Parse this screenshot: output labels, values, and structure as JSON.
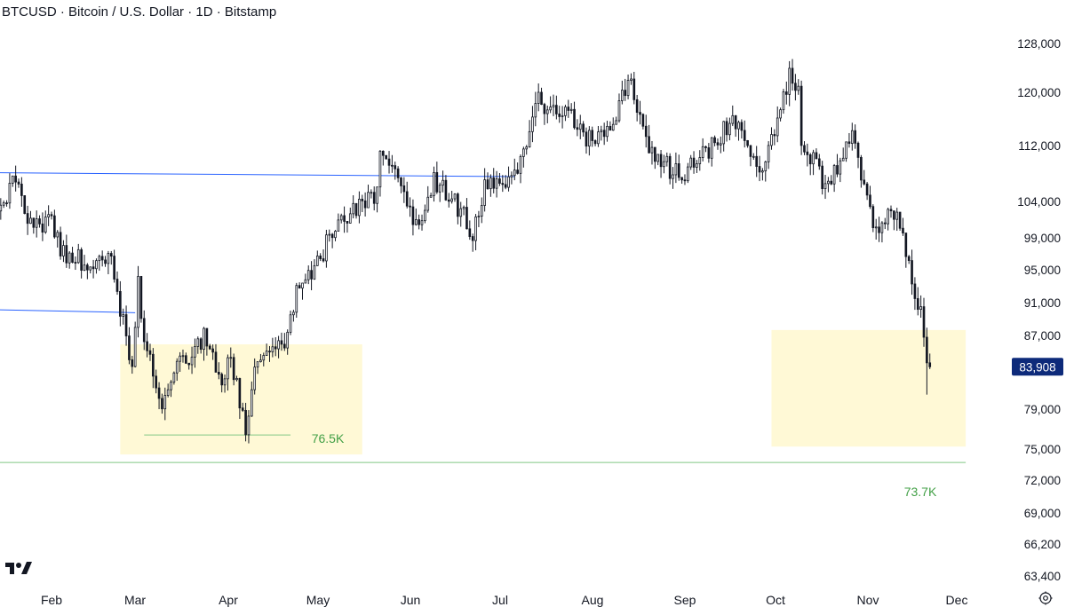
{
  "header": {
    "title": "BTCUSD · Bitcoin / U.S. Dollar · 1D · Bitstamp"
  },
  "colors": {
    "candle": "#131722",
    "zone_fill": "#fff9d6",
    "level_line": "#81c784",
    "level_text": "#43a047",
    "trendline": "#2962ff",
    "price_tag_bg": "#0d2a7a",
    "axis_text": "#131722"
  },
  "icons": {
    "logo": "tradingview-logo-icon",
    "settings": "settings-gear-icon"
  },
  "chart_data": {
    "type": "candlestick",
    "title": "BTCUSD · Bitcoin / U.S. Dollar · 1D · Bitstamp",
    "xlabel": "",
    "ylabel": "",
    "x_tick_labels": [
      "Feb",
      "Mar",
      "Apr",
      "May",
      "Jun",
      "Jul",
      "Aug",
      "Sep",
      "Oct",
      "Nov",
      "Dec"
    ],
    "y_tick_labels": [
      "63,400",
      "66,200",
      "69,000",
      "72,000",
      "75,000",
      "79,000",
      "87,000",
      "91,000",
      "95,000",
      "99,000",
      "104,000",
      "112,000",
      "120,000",
      "128,000"
    ],
    "y_scale": "log",
    "ylim": [
      62500,
      138000
    ],
    "last_price": {
      "label": "83,908",
      "value": 83908
    },
    "levels": [
      {
        "label": "76.5K",
        "value": 76500,
        "from": "2025-03-04",
        "to": "2025-04-22"
      },
      {
        "label": "73.7K",
        "value": 73700,
        "from": "2025-01-09",
        "to": "2025-12-04"
      }
    ],
    "support_zones": [
      {
        "from": "2025-02-24",
        "to": "2025-05-16",
        "low": 74500,
        "high": 86500
      },
      {
        "from": "2025-09-30",
        "to": "2025-12-04",
        "low": 75300,
        "high": 88200
      }
    ],
    "trendlines": [
      {
        "from_date": "2025-01-09",
        "from_value": 109200,
        "to_date": "2025-07-06",
        "to_value": 108600
      },
      {
        "from_date": "2025-01-09",
        "from_value": 90700,
        "to_date": "2025-03-01",
        "to_value": 90300
      }
    ],
    "path_points": [
      [
        "2025-01-10",
        96000
      ],
      [
        "2025-01-14",
        103000
      ],
      [
        "2025-01-20",
        108500
      ],
      [
        "2025-01-23",
        103500
      ],
      [
        "2025-01-27",
        101500
      ],
      [
        "2025-02-01",
        102000
      ],
      [
        "2025-02-04",
        98000
      ],
      [
        "2025-02-10",
        97000
      ],
      [
        "2025-02-16",
        96500
      ],
      [
        "2025-02-21",
        97500
      ],
      [
        "2025-02-25",
        89000
      ],
      [
        "2025-02-28",
        84000
      ],
      [
        "2025-03-02",
        94000
      ],
      [
        "2025-03-04",
        86500
      ],
      [
        "2025-03-10",
        79500
      ],
      [
        "2025-03-14",
        84000
      ],
      [
        "2025-03-20",
        84500
      ],
      [
        "2025-03-24",
        88000
      ],
      [
        "2025-03-30",
        82500
      ],
      [
        "2025-04-02",
        85000
      ],
      [
        "2025-04-07",
        77000
      ],
      [
        "2025-04-09",
        82000
      ],
      [
        "2025-04-13",
        85000
      ],
      [
        "2025-04-21",
        87500
      ],
      [
        "2025-04-24",
        93500
      ],
      [
        "2025-05-01",
        96500
      ],
      [
        "2025-05-08",
        102500
      ],
      [
        "2025-05-14",
        104000
      ],
      [
        "2025-05-20",
        106000
      ],
      [
        "2025-05-22",
        111000
      ],
      [
        "2025-05-26",
        109500
      ],
      [
        "2025-05-31",
        104000
      ],
      [
        "2025-06-05",
        101500
      ],
      [
        "2025-06-09",
        108000
      ],
      [
        "2025-06-15",
        105500
      ],
      [
        "2025-06-18",
        103500
      ],
      [
        "2025-06-22",
        100500
      ],
      [
        "2025-06-26",
        107000
      ],
      [
        "2025-07-02",
        108000
      ],
      [
        "2025-07-06",
        108800
      ],
      [
        "2025-07-09",
        111500
      ],
      [
        "2025-07-14",
        121000
      ],
      [
        "2025-07-18",
        118500
      ],
      [
        "2025-07-25",
        117500
      ],
      [
        "2025-08-01",
        113500
      ],
      [
        "2025-08-04",
        114500
      ],
      [
        "2025-08-10",
        119500
      ],
      [
        "2025-08-14",
        123500
      ],
      [
        "2025-08-20",
        113500
      ],
      [
        "2025-08-25",
        110500
      ],
      [
        "2025-08-31",
        108500
      ],
      [
        "2025-09-03",
        111000
      ],
      [
        "2025-09-08",
        112000
      ],
      [
        "2025-09-14",
        115500
      ],
      [
        "2025-09-18",
        117000
      ],
      [
        "2025-09-22",
        112500
      ],
      [
        "2025-09-26",
        109500
      ],
      [
        "2025-09-30",
        114000
      ],
      [
        "2025-10-06",
        124500
      ],
      [
        "2025-10-09",
        121500
      ],
      [
        "2025-10-10",
        113000
      ],
      [
        "2025-10-15",
        111000
      ],
      [
        "2025-10-17",
        106500
      ],
      [
        "2025-10-21",
        109000
      ],
      [
        "2025-10-27",
        114500
      ],
      [
        "2025-10-30",
        109500
      ],
      [
        "2025-11-04",
        101000
      ],
      [
        "2025-11-07",
        103000
      ],
      [
        "2025-11-11",
        103500
      ],
      [
        "2025-11-13",
        99500
      ],
      [
        "2025-11-17",
        92000
      ],
      [
        "2025-11-19",
        91500
      ],
      [
        "2025-11-21",
        84500
      ],
      [
        "2025-11-22",
        83908
      ]
    ],
    "annotations": [
      {
        "text": "76.5K",
        "color": "#43a047"
      },
      {
        "text": "73.7K",
        "color": "#43a047"
      }
    ],
    "grid": false,
    "legend": "none"
  }
}
